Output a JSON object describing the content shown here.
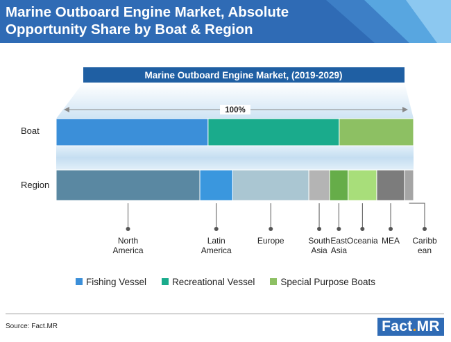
{
  "header": {
    "title": "Marine Outboard Engine Market, Absolute Opportunity Share by Boat & Region"
  },
  "banner": {
    "title": "Marine Outboard Engine Market, (2019-2029)",
    "total_label": "100%"
  },
  "chart_data": {
    "type": "bar",
    "orientation": "horizontal-stacked-100",
    "rows": [
      {
        "name": "Boat",
        "segments": [
          {
            "label": "Fishing Vessel",
            "value": 42.5,
            "color": "#3b8fd9"
          },
          {
            "label": "Recreational Vessel",
            "value": 36.7,
            "color": "#1aab8c"
          },
          {
            "label": "Special Purpose Boats",
            "value": 20.8,
            "color": "#8dc063"
          }
        ]
      },
      {
        "name": "Region",
        "segments": [
          {
            "label": "North America",
            "value": 40.2,
            "color": "#5a88a2"
          },
          {
            "label": "Latin America",
            "value": 9.2,
            "color": "#3a97de"
          },
          {
            "label": "Europe",
            "value": 21.3,
            "color": "#aac6d2"
          },
          {
            "label": "South Asia",
            "value": 5.8,
            "color": "#b4b4b4"
          },
          {
            "label": "East Asia",
            "value": 5.2,
            "color": "#66ad49"
          },
          {
            "label": "Oceania",
            "value": 8.0,
            "color": "#a8de7a"
          },
          {
            "label": "MEA",
            "value": 7.8,
            "color": "#7c7c7c"
          },
          {
            "label": "Caribbean",
            "value": 2.5,
            "color": "#a5a5a5"
          }
        ]
      }
    ],
    "region_label_lines": [
      [
        "North",
        "America"
      ],
      [
        "Latin",
        "America"
      ],
      [
        "Europe"
      ],
      [
        "South",
        "Asia"
      ],
      [
        "East",
        "Asia"
      ],
      [
        "Oceania"
      ],
      [
        "MEA"
      ],
      [
        "Caribb",
        "ean"
      ]
    ],
    "legend": [
      {
        "label": "Fishing Vessel",
        "color": "#3b8fd9"
      },
      {
        "label": "Recreational Vessel",
        "color": "#1aab8c"
      },
      {
        "label": "Special Purpose Boats",
        "color": "#8dc063"
      }
    ],
    "legend_position": "bottom",
    "grid": false
  },
  "footer": {
    "source": "Source: Fact.MR",
    "logo_main": "Fact",
    "logo_dot": ".",
    "logo_end": "MR"
  },
  "colors": {
    "header": "#2f6bb5",
    "banner": "#1f5fa3",
    "accent": "#f3a21b"
  }
}
